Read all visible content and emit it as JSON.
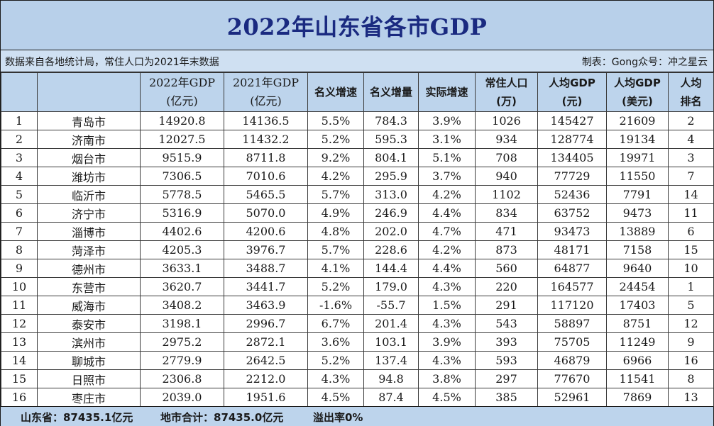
{
  "title": "2022年山东省各市GDP",
  "source_left": "数据来自各地统计局，常住人口为2021年末数据",
  "source_right": "制表：Gong众号：冲之星云",
  "headers": {
    "gdp2022_l1": "2022年GDP",
    "gdp2022_l2": "(亿元)",
    "gdp2021_l1": "2021年GDP",
    "gdp2021_l2": "(亿元)",
    "nominal_growth": "名义增速",
    "nominal_increase": "名义增量",
    "real_growth": "实际增速",
    "pop_l1": "常住人口",
    "pop_l2": "(万)",
    "percap_l1": "人均GDP",
    "percap_l2": "(元)",
    "percap_usd_l1": "人均GDP",
    "percap_usd_l2": "(美元)",
    "rank_l1": "人均",
    "rank_l2": "排名"
  },
  "rows": [
    {
      "no": "1",
      "city": "青岛市",
      "gdp2022": "14920.8",
      "gdp2021": "14136.5",
      "ng": "5.5%",
      "ni": "784.3",
      "rg": "3.9%",
      "pop": "1026",
      "pc": "145427",
      "pcu": "21609",
      "rank": "2"
    },
    {
      "no": "2",
      "city": "济南市",
      "gdp2022": "12027.5",
      "gdp2021": "11432.2",
      "ng": "5.2%",
      "ni": "595.3",
      "rg": "3.1%",
      "pop": "934",
      "pc": "128774",
      "pcu": "19134",
      "rank": "4"
    },
    {
      "no": "3",
      "city": "烟台市",
      "gdp2022": "9515.9",
      "gdp2021": "8711.8",
      "ng": "9.2%",
      "ni": "804.1",
      "rg": "5.1%",
      "pop": "708",
      "pc": "134405",
      "pcu": "19971",
      "rank": "3"
    },
    {
      "no": "4",
      "city": "潍坊市",
      "gdp2022": "7306.5",
      "gdp2021": "7010.6",
      "ng": "4.2%",
      "ni": "295.9",
      "rg": "3.7%",
      "pop": "940",
      "pc": "77729",
      "pcu": "11550",
      "rank": "7"
    },
    {
      "no": "5",
      "city": "临沂市",
      "gdp2022": "5778.5",
      "gdp2021": "5465.5",
      "ng": "5.7%",
      "ni": "313.0",
      "rg": "4.2%",
      "pop": "1102",
      "pc": "52436",
      "pcu": "7791",
      "rank": "14"
    },
    {
      "no": "6",
      "city": "济宁市",
      "gdp2022": "5316.9",
      "gdp2021": "5070.0",
      "ng": "4.9%",
      "ni": "246.9",
      "rg": "4.4%",
      "pop": "834",
      "pc": "63752",
      "pcu": "9473",
      "rank": "11"
    },
    {
      "no": "7",
      "city": "淄博市",
      "gdp2022": "4402.6",
      "gdp2021": "4200.6",
      "ng": "4.8%",
      "ni": "202.0",
      "rg": "4.7%",
      "pop": "471",
      "pc": "93473",
      "pcu": "13889",
      "rank": "6"
    },
    {
      "no": "8",
      "city": "菏泽市",
      "gdp2022": "4205.3",
      "gdp2021": "3976.7",
      "ng": "5.7%",
      "ni": "228.6",
      "rg": "4.2%",
      "pop": "873",
      "pc": "48171",
      "pcu": "7158",
      "rank": "15"
    },
    {
      "no": "9",
      "city": "德州市",
      "gdp2022": "3633.1",
      "gdp2021": "3488.7",
      "ng": "4.1%",
      "ni": "144.4",
      "rg": "4.4%",
      "pop": "560",
      "pc": "64877",
      "pcu": "9640",
      "rank": "10"
    },
    {
      "no": "10",
      "city": "东营市",
      "gdp2022": "3620.7",
      "gdp2021": "3441.7",
      "ng": "5.2%",
      "ni": "179.0",
      "rg": "4.3%",
      "pop": "220",
      "pc": "164577",
      "pcu": "24454",
      "rank": "1"
    },
    {
      "no": "11",
      "city": "威海市",
      "gdp2022": "3408.2",
      "gdp2021": "3463.9",
      "ng": "-1.6%",
      "ni": "-55.7",
      "rg": "1.5%",
      "pop": "291",
      "pc": "117120",
      "pcu": "17403",
      "rank": "5"
    },
    {
      "no": "12",
      "city": "泰安市",
      "gdp2022": "3198.1",
      "gdp2021": "2996.7",
      "ng": "6.7%",
      "ni": "201.4",
      "rg": "4.3%",
      "pop": "543",
      "pc": "58897",
      "pcu": "8751",
      "rank": "12"
    },
    {
      "no": "13",
      "city": "滨州市",
      "gdp2022": "2975.2",
      "gdp2021": "2872.1",
      "ng": "3.6%",
      "ni": "103.1",
      "rg": "3.9%",
      "pop": "393",
      "pc": "75705",
      "pcu": "11249",
      "rank": "9"
    },
    {
      "no": "14",
      "city": "聊城市",
      "gdp2022": "2779.9",
      "gdp2021": "2642.5",
      "ng": "5.2%",
      "ni": "137.4",
      "rg": "4.3%",
      "pop": "593",
      "pc": "46879",
      "pcu": "6966",
      "rank": "16"
    },
    {
      "no": "15",
      "city": "日照市",
      "gdp2022": "2306.8",
      "gdp2021": "2212.0",
      "ng": "4.3%",
      "ni": "94.8",
      "rg": "3.8%",
      "pop": "297",
      "pc": "77670",
      "pcu": "11541",
      "rank": "8"
    },
    {
      "no": "16",
      "city": "枣庄市",
      "gdp2022": "2039.0",
      "gdp2021": "1951.6",
      "ng": "4.5%",
      "ni": "87.4",
      "rg": "4.5%",
      "pop": "385",
      "pc": "52961",
      "pcu": "7869",
      "rank": "13"
    }
  ],
  "footer": {
    "province": "山东省：87435.1亿元",
    "city_sum": "地市合计：87435.0亿元",
    "overflow": "溢出率0%"
  }
}
